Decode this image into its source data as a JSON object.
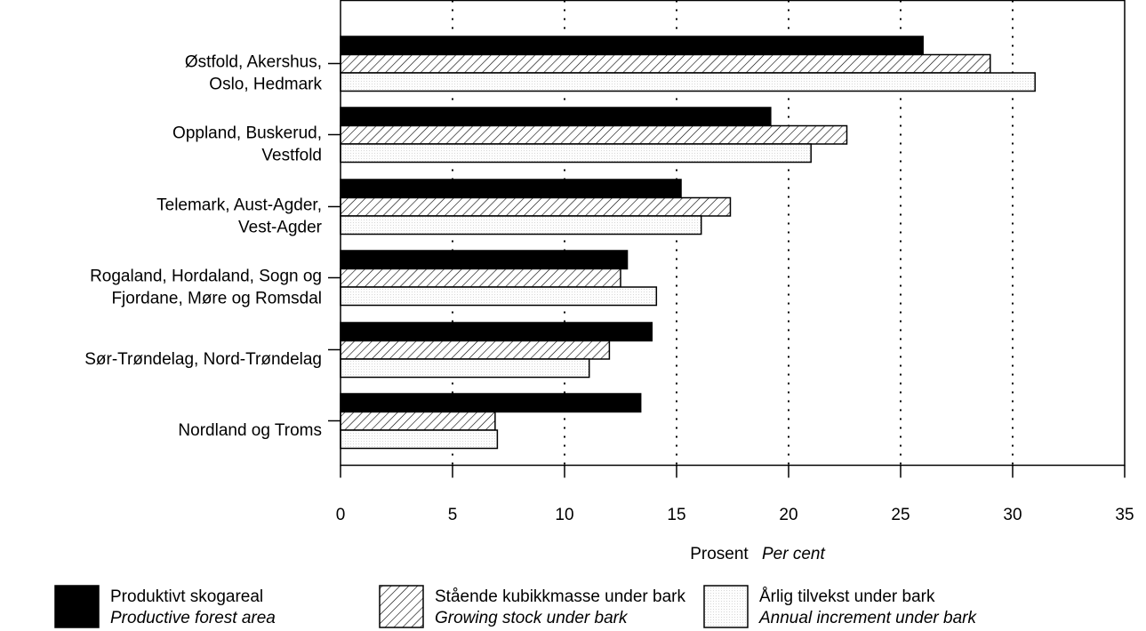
{
  "chart_data": {
    "type": "bar",
    "orientation": "horizontal",
    "categories": [
      [
        "Østfold, Akershus,",
        "Oslo, Hedmark"
      ],
      [
        "Oppland, Buskerud,",
        "Vestfold"
      ],
      [
        "Telemark, Aust-Agder,",
        "Vest-Agder"
      ],
      [
        "Rogaland, Hordaland, Sogn og",
        "Fjordane, Møre og Romsdal"
      ],
      [
        "Sør-Trøndelag, Nord-Trøndelag"
      ],
      [
        "Nordland og Troms"
      ]
    ],
    "series": [
      {
        "name": "Produktivt skogareal",
        "name_en": "Productive forest area",
        "fill": "solid",
        "color": "#000000",
        "values": [
          26.0,
          19.2,
          15.2,
          12.8,
          13.9,
          13.4
        ]
      },
      {
        "name": "Stående kubikkmasse under bark",
        "name_en": "Growing stock under bark",
        "fill": "hatched",
        "color": "#000000",
        "values": [
          29.0,
          22.6,
          17.4,
          12.5,
          12.0,
          6.9
        ]
      },
      {
        "name": "Årlig tilvekst under bark",
        "name_en": "Annual increment under bark",
        "fill": "dotted",
        "color": "#f6f6f6",
        "values": [
          31.0,
          21.0,
          16.1,
          14.1,
          11.1,
          7.0
        ]
      }
    ],
    "xlim": [
      0,
      35
    ],
    "xticks": [
      0,
      5,
      10,
      15,
      20,
      25,
      30,
      35
    ],
    "xlabel": "Prosent",
    "xlabel_en": "Per cent",
    "grid": "vertical-dotted",
    "legend_position": "bottom"
  }
}
